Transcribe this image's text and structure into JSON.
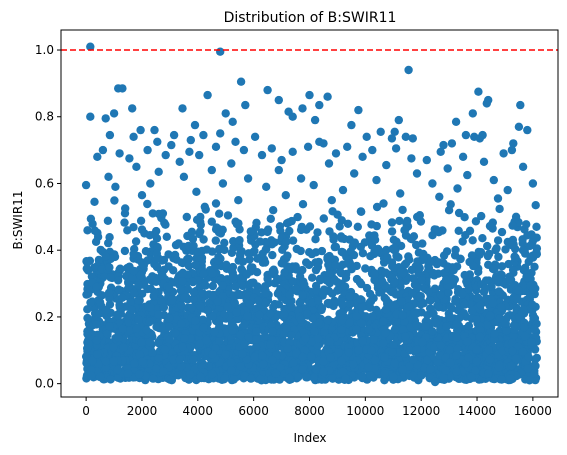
{
  "chart_data": {
    "type": "scatter",
    "title": "Distribution of B:SWIR11",
    "xlabel": "Index",
    "ylabel": "B:SWIR11",
    "xlim": [
      -900,
      16900
    ],
    "ylim": [
      -0.04,
      1.06
    ],
    "x_ticks": [
      0,
      2000,
      4000,
      6000,
      8000,
      10000,
      12000,
      14000,
      16000
    ],
    "y_ticks": [
      0.0,
      0.2,
      0.4,
      0.6,
      0.8,
      1.0
    ],
    "x_tick_labels": [
      "0",
      "2000",
      "4000",
      "6000",
      "8000",
      "10000",
      "12000",
      "14000",
      "16000"
    ],
    "y_tick_labels": [
      "0.0",
      "0.2",
      "0.4",
      "0.6",
      "0.8",
      "1.0"
    ],
    "grid": false,
    "marker_color": "#1f77b4",
    "reference_line": {
      "y": 1.0,
      "color": "#ff0000",
      "style": "dashed"
    },
    "series": [
      {
        "points": [
          [
            150,
            1.01
          ],
          [
            4800,
            0.995
          ],
          [
            11550,
            0.94
          ],
          [
            5550,
            0.905
          ],
          [
            1150,
            0.885
          ],
          [
            1300,
            0.885
          ],
          [
            6500,
            0.88
          ],
          [
            14050,
            0.875
          ],
          [
            4350,
            0.865
          ],
          [
            8000,
            0.865
          ],
          [
            8650,
            0.86
          ],
          [
            6900,
            0.85
          ],
          [
            14400,
            0.85
          ],
          [
            14350,
            0.84
          ],
          [
            5700,
            0.835
          ],
          [
            15550,
            0.835
          ],
          [
            8350,
            0.835
          ],
          [
            7750,
            0.825
          ],
          [
            1650,
            0.825
          ],
          [
            3450,
            0.825
          ],
          [
            9750,
            0.82
          ],
          [
            7250,
            0.815
          ],
          [
            13850,
            0.81
          ],
          [
            1000,
            0.81
          ],
          [
            5000,
            0.81
          ],
          [
            7400,
            0.8
          ],
          [
            150,
            0.8
          ],
          [
            700,
            0.795
          ],
          [
            11200,
            0.79
          ],
          [
            8200,
            0.79
          ],
          [
            13250,
            0.785
          ],
          [
            5250,
            0.785
          ],
          [
            15500,
            0.77
          ],
          [
            3900,
            0.775
          ],
          [
            2450,
            0.76
          ],
          [
            15800,
            0.76
          ],
          [
            9500,
            0.775
          ],
          [
            1950,
            0.76
          ],
          [
            10550,
            0.755
          ],
          [
            4800,
            0.75
          ],
          [
            11050,
            0.755
          ],
          [
            13600,
            0.745
          ],
          [
            14200,
            0.745
          ],
          [
            850,
            0.745
          ],
          [
            1700,
            0.74
          ],
          [
            11450,
            0.74
          ],
          [
            10050,
            0.74
          ],
          [
            4200,
            0.745
          ],
          [
            13900,
            0.74
          ],
          [
            3150,
            0.745
          ],
          [
            6050,
            0.74
          ],
          [
            11700,
            0.735
          ],
          [
            14100,
            0.735
          ],
          [
            3750,
            0.73
          ],
          [
            5350,
            0.725
          ],
          [
            8350,
            0.725
          ],
          [
            2550,
            0.725
          ],
          [
            10950,
            0.735
          ],
          [
            8500,
            0.72
          ],
          [
            15300,
            0.72
          ],
          [
            13100,
            0.72
          ],
          [
            3050,
            0.715
          ],
          [
            12800,
            0.715
          ],
          [
            9350,
            0.71
          ],
          [
            6650,
            0.705
          ],
          [
            7950,
            0.71
          ],
          [
            4650,
            0.71
          ],
          [
            11100,
            0.705
          ],
          [
            2200,
            0.7
          ],
          [
            600,
            0.7
          ],
          [
            3700,
            0.695
          ],
          [
            10250,
            0.7
          ],
          [
            12700,
            0.695
          ],
          [
            15250,
            0.7
          ],
          [
            5650,
            0.7
          ],
          [
            7400,
            0.695
          ],
          [
            1200,
            0.69
          ],
          [
            14950,
            0.69
          ],
          [
            8950,
            0.69
          ],
          [
            2850,
            0.685
          ],
          [
            4050,
            0.685
          ],
          [
            6300,
            0.685
          ],
          [
            13500,
            0.68
          ],
          [
            9900,
            0.68
          ],
          [
            400,
            0.68
          ],
          [
            11650,
            0.675
          ],
          [
            1550,
            0.675
          ],
          [
            12200,
            0.67
          ],
          [
            7000,
            0.67
          ],
          [
            14250,
            0.665
          ],
          [
            3350,
            0.665
          ],
          [
            5200,
            0.66
          ],
          [
            8700,
            0.66
          ],
          [
            10750,
            0.655
          ],
          [
            1800,
            0.65
          ],
          [
            15650,
            0.65
          ],
          [
            12950,
            0.645
          ],
          [
            4500,
            0.64
          ],
          [
            6900,
            0.64
          ],
          [
            2600,
            0.635
          ],
          [
            9600,
            0.63
          ],
          [
            11850,
            0.63
          ],
          [
            13650,
            0.625
          ],
          [
            800,
            0.62
          ],
          [
            3500,
            0.62
          ],
          [
            5800,
            0.615
          ],
          [
            7700,
            0.615
          ],
          [
            14600,
            0.61
          ],
          [
            10400,
            0.61
          ],
          [
            2300,
            0.6
          ],
          [
            12400,
            0.6
          ],
          [
            4900,
            0.6
          ],
          [
            8150,
            0.595
          ],
          [
            16000,
            0.6
          ],
          [
            0,
            0.595
          ],
          [
            1050,
            0.59
          ],
          [
            6450,
            0.59
          ],
          [
            13300,
            0.585
          ],
          [
            9200,
            0.58
          ],
          [
            15100,
            0.58
          ],
          [
            3950,
            0.575
          ],
          [
            11250,
            0.57
          ],
          [
            2000,
            0.565
          ],
          [
            7150,
            0.565
          ],
          [
            12650,
            0.56
          ],
          [
            14750,
            0.555
          ],
          [
            5450,
            0.55
          ],
          [
            8800,
            0.55
          ],
          [
            300,
            0.545
          ],
          [
            10650,
            0.54
          ],
          [
            16100,
            0.535
          ],
          [
            4250,
            0.53
          ],
          [
            1400,
            0.525
          ],
          [
            13000,
            0.52
          ],
          [
            6700,
            0.52
          ],
          [
            9850,
            0.515
          ],
          [
            2750,
            0.51
          ],
          [
            11950,
            0.505
          ],
          [
            15400,
            0.5
          ],
          [
            500,
            0.02
          ],
          [
            2400,
            0.015
          ],
          [
            4100,
            0.02
          ],
          [
            5900,
            0.015
          ],
          [
            7600,
            0.02
          ],
          [
            9300,
            0.015
          ],
          [
            11000,
            0.02
          ],
          [
            12500,
            0.005
          ],
          [
            13800,
            0.02
          ],
          [
            15200,
            0.015
          ],
          [
            16050,
            0.03
          ],
          [
            1500,
            0.03
          ],
          [
            3300,
            0.025
          ],
          [
            6800,
            0.03
          ],
          [
            10200,
            0.025
          ],
          [
            14400,
            0.03
          ],
          [
            8500,
            0.035
          ],
          [
            12000,
            0.025
          ]
        ],
        "band": {
          "x_min": 0,
          "x_max": 16150,
          "y_mid_min": 0.06,
          "y_mid_max": 0.55,
          "count": 4000
        }
      }
    ]
  }
}
